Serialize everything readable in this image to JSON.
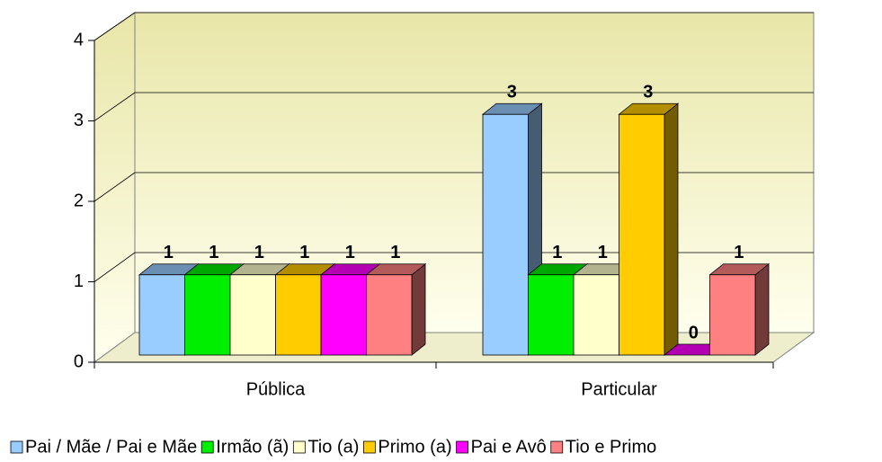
{
  "chart_data": {
    "type": "bar3d",
    "categories": [
      "Pública",
      "Particular"
    ],
    "series": [
      {
        "name": "Pai / Mãe / Pai e Mãe",
        "color": "#99ccff",
        "values": [
          1,
          3
        ]
      },
      {
        "name": "Irmão (ã)",
        "color": "#00ee00",
        "values": [
          1,
          1
        ]
      },
      {
        "name": "Tio (a)",
        "color": "#ffffcc",
        "values": [
          1,
          1
        ]
      },
      {
        "name": "Primo (a)",
        "color": "#ffcc00",
        "values": [
          1,
          3
        ]
      },
      {
        "name": "Pai e Avô",
        "color": "#ff00ff",
        "values": [
          1,
          0
        ]
      },
      {
        "name": "Tio e Primo",
        "color": "#ff8080",
        "values": [
          1,
          1
        ]
      }
    ],
    "ylim": [
      0,
      4
    ],
    "yticks": [
      0,
      1,
      2,
      3,
      4
    ],
    "grid": true,
    "legend": "bottom"
  }
}
